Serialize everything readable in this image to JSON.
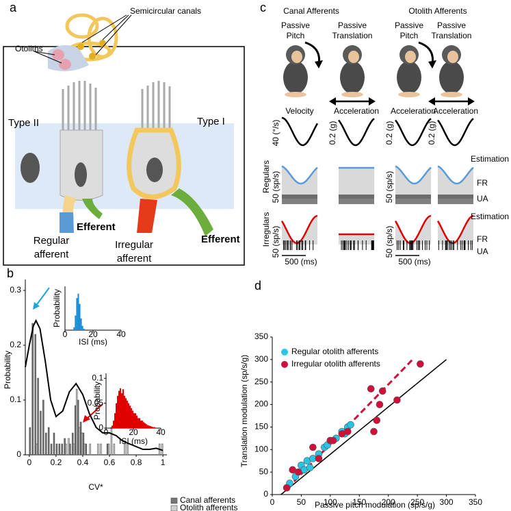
{
  "panels": {
    "a": {
      "letter": "a",
      "semicircular_canals": "Semicircular canals",
      "otoliths": "Otoliths",
      "type_ii": "Type II",
      "type_i": "Type I",
      "efferent_left": "Efferent",
      "efferent_right": "Efferent",
      "regular_afferent": [
        "Regular",
        "afferent"
      ],
      "irregular_afferent": [
        "Irregular",
        "afferent"
      ]
    },
    "b": {
      "letter": "b"
    },
    "c": {
      "letter": "c",
      "groups": [
        "Canal Afferents",
        "Otolith Afferents"
      ],
      "columns": [
        [
          "Passive",
          "Pitch"
        ],
        [
          "Passive",
          "Translation"
        ],
        [
          "Passive",
          "Pitch"
        ],
        [
          "Passive",
          "Translation"
        ]
      ],
      "stimulus": [
        "Velocity",
        "Acceleration",
        "Acceleration",
        "Acceleration"
      ],
      "stimulus_scale": [
        "40 (°/s)",
        "0.2 (g)",
        "0.2 (g)",
        "0.2 (g)"
      ],
      "rows": [
        "Regulars",
        "Irregulars"
      ],
      "row_colors": [
        "#5b9bd5",
        "#e00000"
      ],
      "rate_scale": "50 (sp/s)",
      "time_scale": "500 (ms)",
      "estimation": "Estimation",
      "fr": "FR",
      "ua": "UA"
    },
    "d": {
      "letter": "d"
    }
  },
  "chart_data": [
    {
      "type": "histogram",
      "x_label": "CV*",
      "y_label": "Probability",
      "bins": [
        0,
        0.02,
        0.04,
        0.06,
        0.08,
        0.1,
        0.12,
        0.14,
        0.16,
        0.18,
        0.2,
        0.22,
        0.24,
        0.26,
        0.28,
        0.3,
        0.32,
        0.34,
        0.36,
        0.38,
        0.4,
        0.42,
        0.44,
        0.46,
        0.48,
        0.5,
        0.52,
        0.54,
        0.56,
        0.58,
        0.6,
        0.62,
        0.64,
        0.66,
        0.68,
        0.7,
        0.72,
        0.74,
        0.76,
        0.78,
        0.8,
        0.82,
        0.84,
        0.86,
        0.88,
        0.9,
        0.92,
        0.94,
        0.96,
        0.98,
        1
      ],
      "series": [
        {
          "name": "Canal afferents",
          "color": "#777777",
          "values": [
            0.05,
            0.24,
            0.22,
            0.14,
            0.08,
            0.1,
            0.04,
            0.05,
            0.02,
            0.04,
            0.02,
            0.02,
            0.02,
            0.03,
            0,
            0.02,
            0.04,
            0.09,
            0.1,
            0.06,
            0.04,
            0.02,
            0,
            0,
            0,
            0,
            0,
            0,
            0,
            0.02,
            0,
            0,
            0,
            0,
            0,
            0,
            0,
            0,
            0,
            0,
            0,
            0,
            0,
            0,
            0,
            0,
            0,
            0,
            0,
            0
          ]
        },
        {
          "name": "Otolith afferents",
          "color": "#d0d0d0",
          "values": [
            0,
            0,
            0.02,
            0,
            0,
            0,
            0,
            0,
            0,
            0,
            0,
            0,
            0,
            0.02,
            0.03,
            0,
            0.02,
            0.12,
            0.05,
            0.04,
            0.02,
            0,
            0.02,
            0,
            0,
            0.02,
            0.02,
            0,
            0,
            0.02,
            0.05,
            0.02,
            0,
            0,
            0,
            0.02,
            0.02,
            0,
            0,
            0,
            0,
            0,
            0,
            0,
            0,
            0,
            0,
            0,
            0.02,
            0.02
          ]
        }
      ],
      "fit": {
        "color": "#000000",
        "x": [
          -0.03,
          0,
          0.03,
          0.05,
          0.08,
          0.12,
          0.16,
          0.2,
          0.25,
          0.3,
          0.35,
          0.4,
          0.45,
          0.5,
          0.55,
          0.6,
          0.65,
          0.7,
          0.75,
          0.8,
          0.85,
          0.9,
          0.95,
          1
        ],
        "y": [
          0.16,
          0.2,
          0.235,
          0.245,
          0.23,
          0.17,
          0.1,
          0.07,
          0.08,
          0.115,
          0.13,
          0.11,
          0.075,
          0.05,
          0.04,
          0.04,
          0.035,
          0.025,
          0.02,
          0.015,
          0.01,
          0.01,
          0.012,
          0.008
        ]
      },
      "xlim": [
        -0.03,
        1.03
      ],
      "xticks": [
        0,
        0.2,
        0.4,
        0.6,
        0.8,
        1
      ],
      "ylim": [
        0,
        0.32
      ],
      "yticks": [
        0,
        0.1,
        0.2,
        0.3
      ]
    },
    {
      "type": "histogram",
      "x_label": "ISI (ms)",
      "y_label": "Probability",
      "bins": [
        6,
        7,
        8,
        9,
        10,
        11,
        12,
        13,
        14
      ],
      "series": [
        {
          "color": "#1a8fd8",
          "values": [
            0.02,
            0.1,
            0.22,
            0.25,
            0.18,
            0.08,
            0.03,
            0.01
          ]
        }
      ],
      "xlim": [
        0,
        40
      ],
      "xticks": [
        0,
        20,
        40
      ],
      "ylim": [
        0,
        0.3
      ]
    },
    {
      "type": "histogram",
      "x_label": "ISI (ms)",
      "y_label": "Probability",
      "bins": [
        4,
        5,
        6,
        7,
        8,
        9,
        10,
        11,
        12,
        13,
        14,
        15,
        16,
        17,
        18,
        19,
        20,
        21,
        22,
        23,
        24,
        25,
        26,
        27,
        28,
        29,
        30,
        31,
        32,
        33,
        34,
        35,
        36
      ],
      "series": [
        {
          "color": "#e00000",
          "values": [
            0.005,
            0.015,
            0.03,
            0.05,
            0.065,
            0.075,
            0.08,
            0.07,
            0.078,
            0.065,
            0.06,
            0.055,
            0.05,
            0.045,
            0.04,
            0.035,
            0.03,
            0.03,
            0.025,
            0.02,
            0.02,
            0.015,
            0.015,
            0.012,
            0.01,
            0.008,
            0.006,
            0.005,
            0.004,
            0.003,
            0.002,
            0.002
          ]
        }
      ],
      "xlim": [
        0,
        40
      ],
      "xticks": [
        0,
        20,
        40
      ],
      "ylim": [
        0,
        0.11
      ],
      "yticks": [
        0,
        0.05,
        0.1
      ]
    },
    {
      "type": "scatter",
      "x_label": "Passive pitch modulation (sp/s/g)",
      "y_label": "Translation modulation (sp/s/g)",
      "series": [
        {
          "name": "Regular otolith afferents",
          "color": "#29c5e6",
          "x": [
            25,
            30,
            40,
            50,
            55,
            60,
            65,
            70,
            80,
            90,
            95,
            100,
            110,
            120,
            125,
            130,
            135
          ],
          "values": [
            15,
            25,
            40,
            65,
            55,
            75,
            60,
            80,
            90,
            105,
            110,
            120,
            125,
            140,
            135,
            150,
            155
          ]
        },
        {
          "name": "Irregular otolith afferents",
          "color": "#d0103a",
          "x": [
            25,
            35,
            45,
            70,
            80,
            100,
            105,
            120,
            130,
            170,
            175,
            180,
            185,
            190,
            215,
            255
          ],
          "values": [
            15,
            55,
            50,
            105,
            80,
            120,
            120,
            135,
            140,
            235,
            140,
            165,
            200,
            230,
            210,
            290
          ]
        }
      ],
      "lines": [
        {
          "color": "#000000",
          "dashed": false,
          "x": [
            15,
            300
          ],
          "y": [
            0,
            300
          ]
        },
        {
          "color": "#d0103a",
          "dashed": true,
          "x": [
            26,
            244
          ],
          "y": [
            14,
            303
          ]
        }
      ],
      "xlim": [
        0,
        350
      ],
      "xticks": [
        0,
        50,
        100,
        150,
        200,
        250,
        300,
        350
      ],
      "ylim": [
        0,
        350
      ],
      "yticks": [
        0,
        50,
        100,
        150,
        200,
        250,
        300,
        350
      ]
    }
  ]
}
